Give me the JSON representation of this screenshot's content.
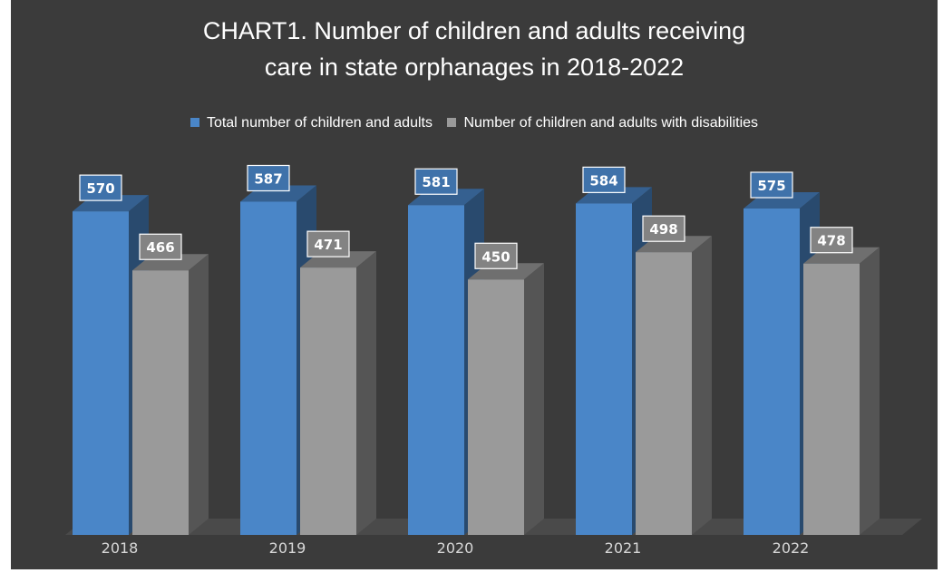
{
  "chart_data": {
    "type": "bar",
    "title": [
      "CHART1. Number of children and adults receiving",
      "care in state orphanages in 2018-2022"
    ],
    "categories": [
      "2018",
      "2019",
      "2020",
      "2021",
      "2022"
    ],
    "series": [
      {
        "name": "Total number of children and adults",
        "values": [
          570,
          587,
          581,
          584,
          575
        ],
        "color": "#4a86c8"
      },
      {
        "name": "Number of children and adults with disabilities",
        "values": [
          466,
          471,
          450,
          498,
          478
        ],
        "color": "#9a9a9a"
      }
    ],
    "legend_position": "top",
    "grid": false,
    "ylim": [
      0,
      600
    ],
    "bar_style": "3d"
  }
}
